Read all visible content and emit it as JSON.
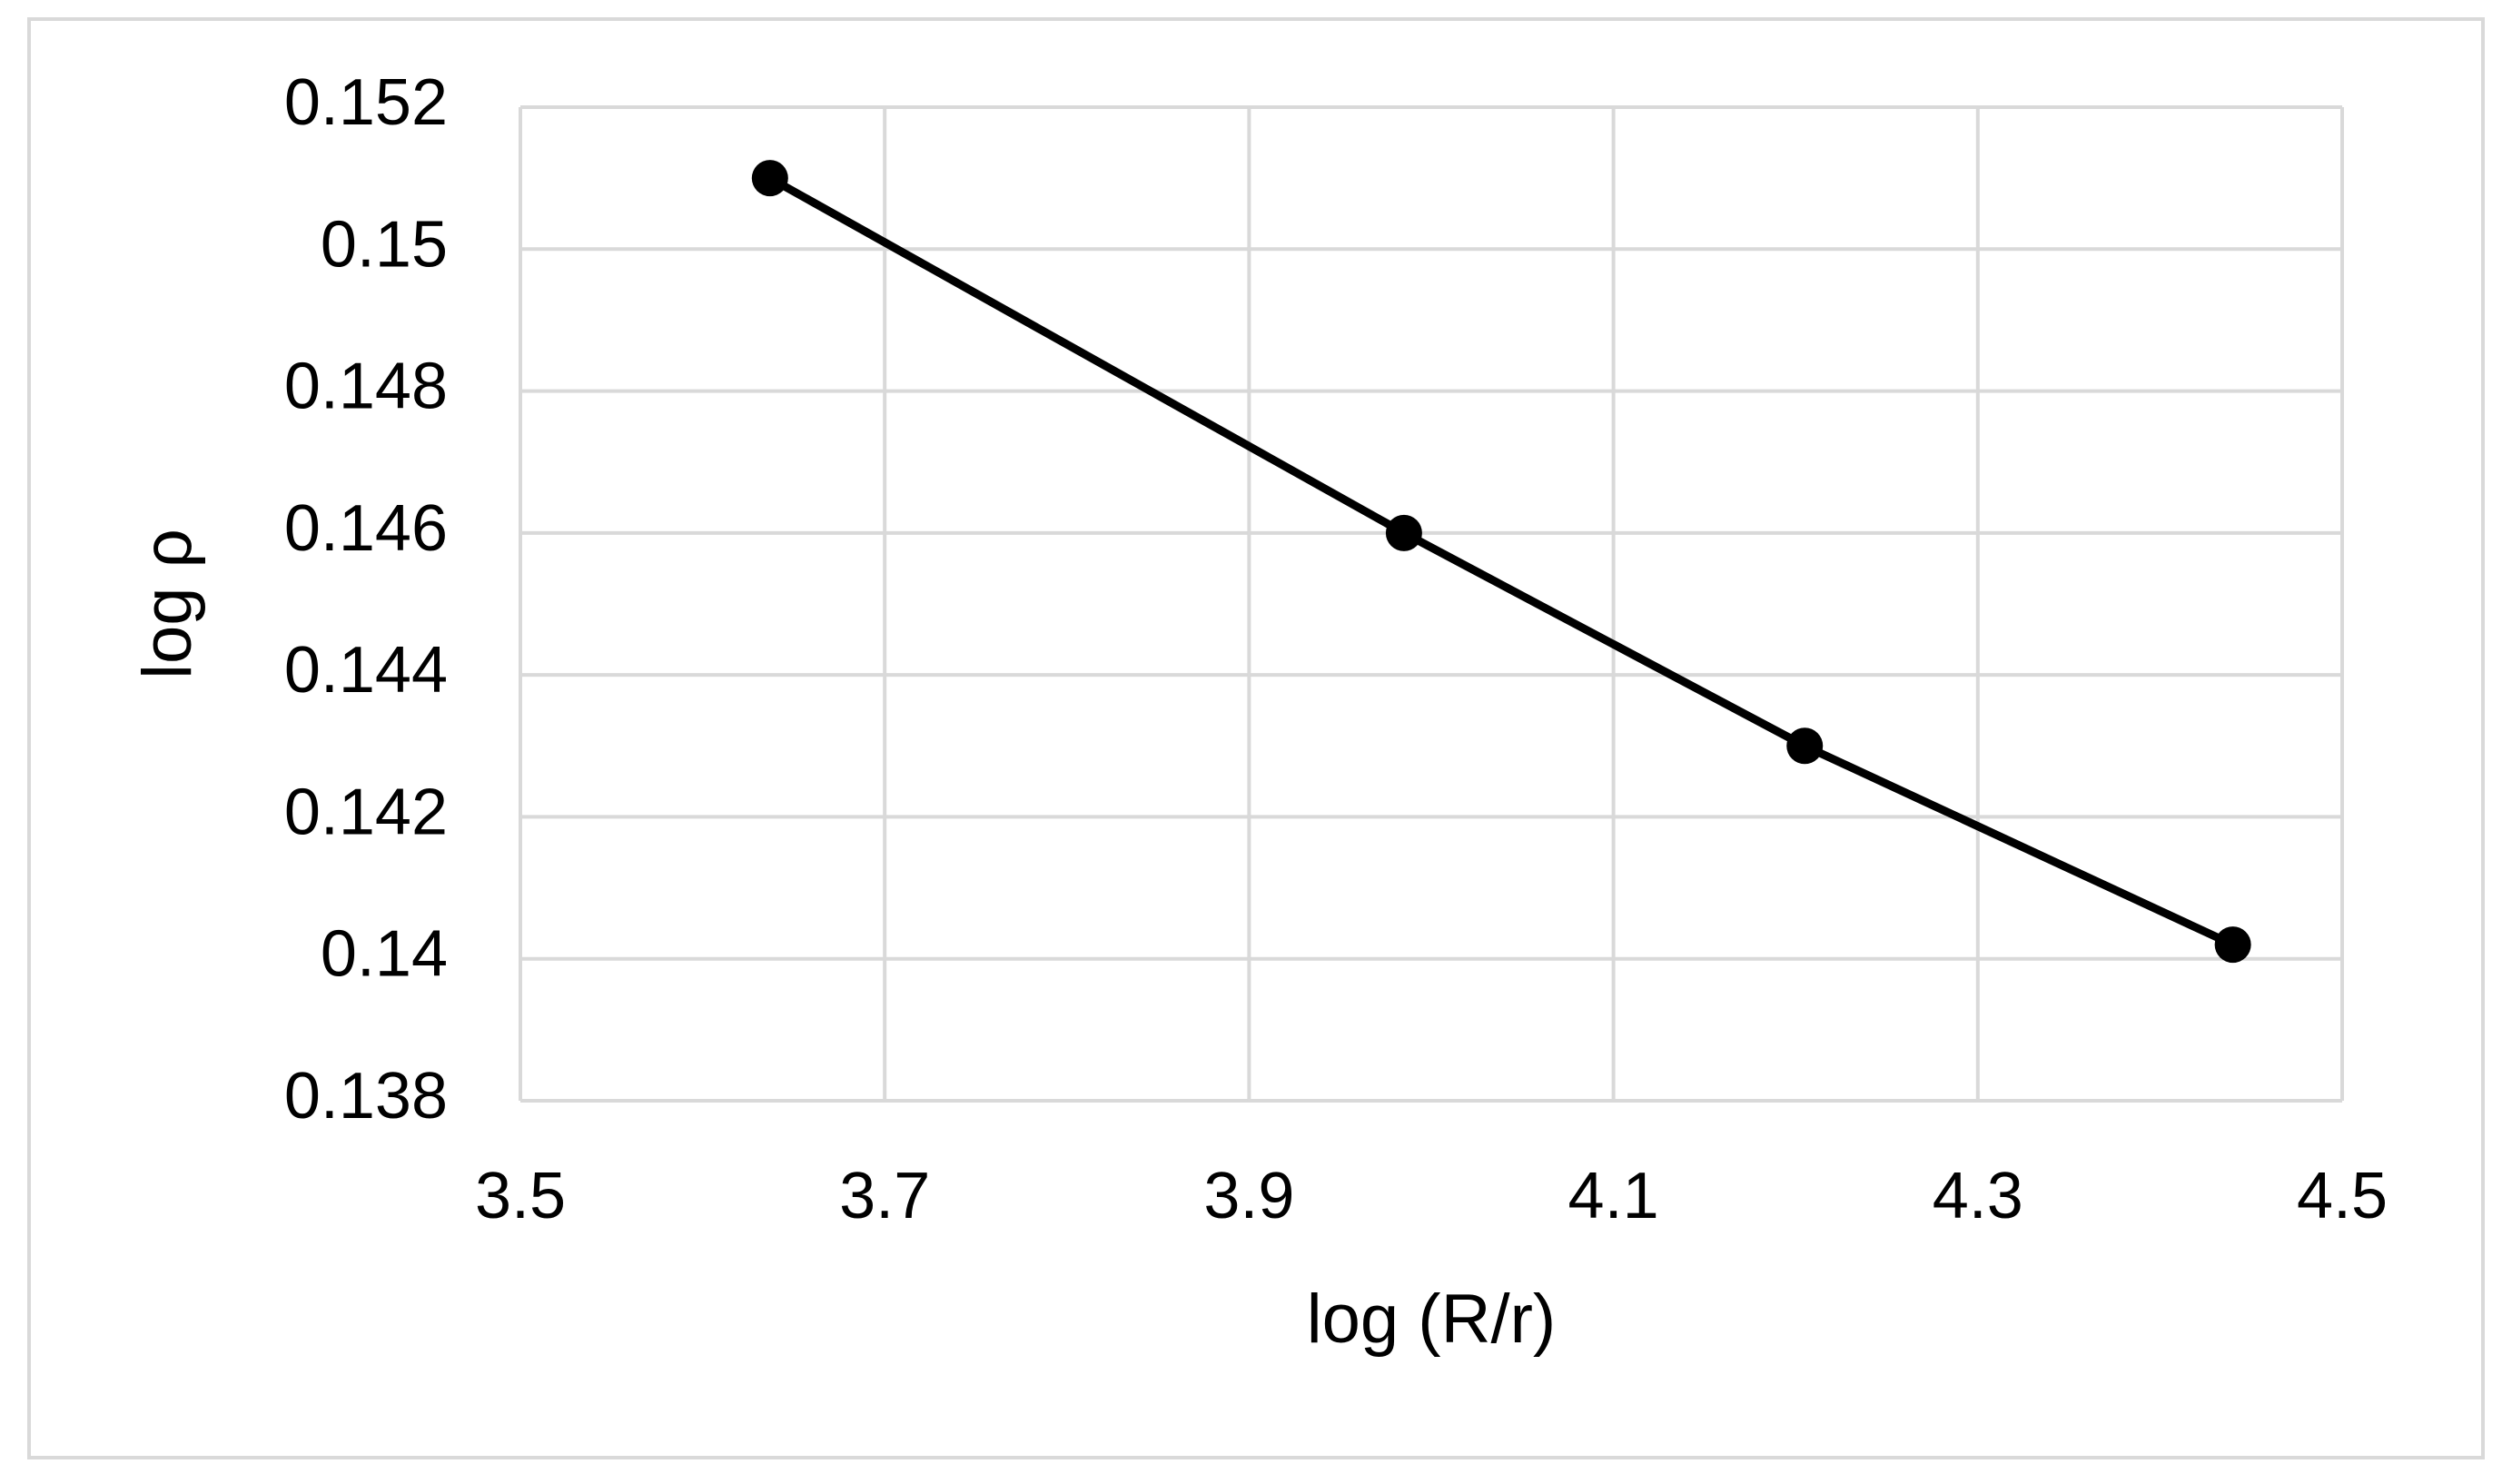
{
  "chart_data": {
    "type": "scatter-line",
    "x_label": "log (R/r)",
    "y_label": "log ρ",
    "x": [
      3.637,
      3.985,
      4.205,
      4.44
    ],
    "values": [
      0.151,
      0.146,
      0.143,
      0.1402
    ],
    "color": "#000000",
    "xlim": [
      3.5,
      4.5
    ],
    "xticks": [
      3.5,
      3.7,
      3.9,
      4.1,
      4.3,
      4.5
    ],
    "ylim": [
      0.138,
      0.152
    ],
    "yticks": [
      0.138,
      0.14,
      0.142,
      0.144,
      0.146,
      0.148,
      0.15,
      0.152
    ],
    "grid": true
  }
}
